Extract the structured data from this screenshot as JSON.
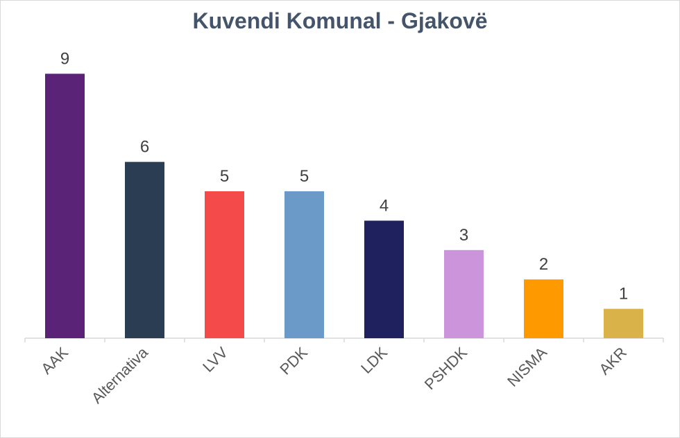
{
  "chart_data": {
    "type": "bar",
    "title": "Kuvendi Komunal  - Gjakovë",
    "xlabel": "",
    "ylabel": "",
    "categories": [
      "AAK",
      "Alternativa",
      "LVV",
      "PDK",
      "LDK",
      "PSHDK",
      "NISMA",
      "AKR"
    ],
    "values": [
      9,
      6,
      5,
      5,
      4,
      3,
      2,
      1
    ],
    "colors": [
      "#5b2378",
      "#2b3d52",
      "#f44a4a",
      "#6b9ac8",
      "#1f215e",
      "#cc94da",
      "#ff9900",
      "#d9b34a"
    ],
    "ylim": [
      0,
      9
    ],
    "grid": false,
    "legend": "none",
    "data_labels": true
  }
}
